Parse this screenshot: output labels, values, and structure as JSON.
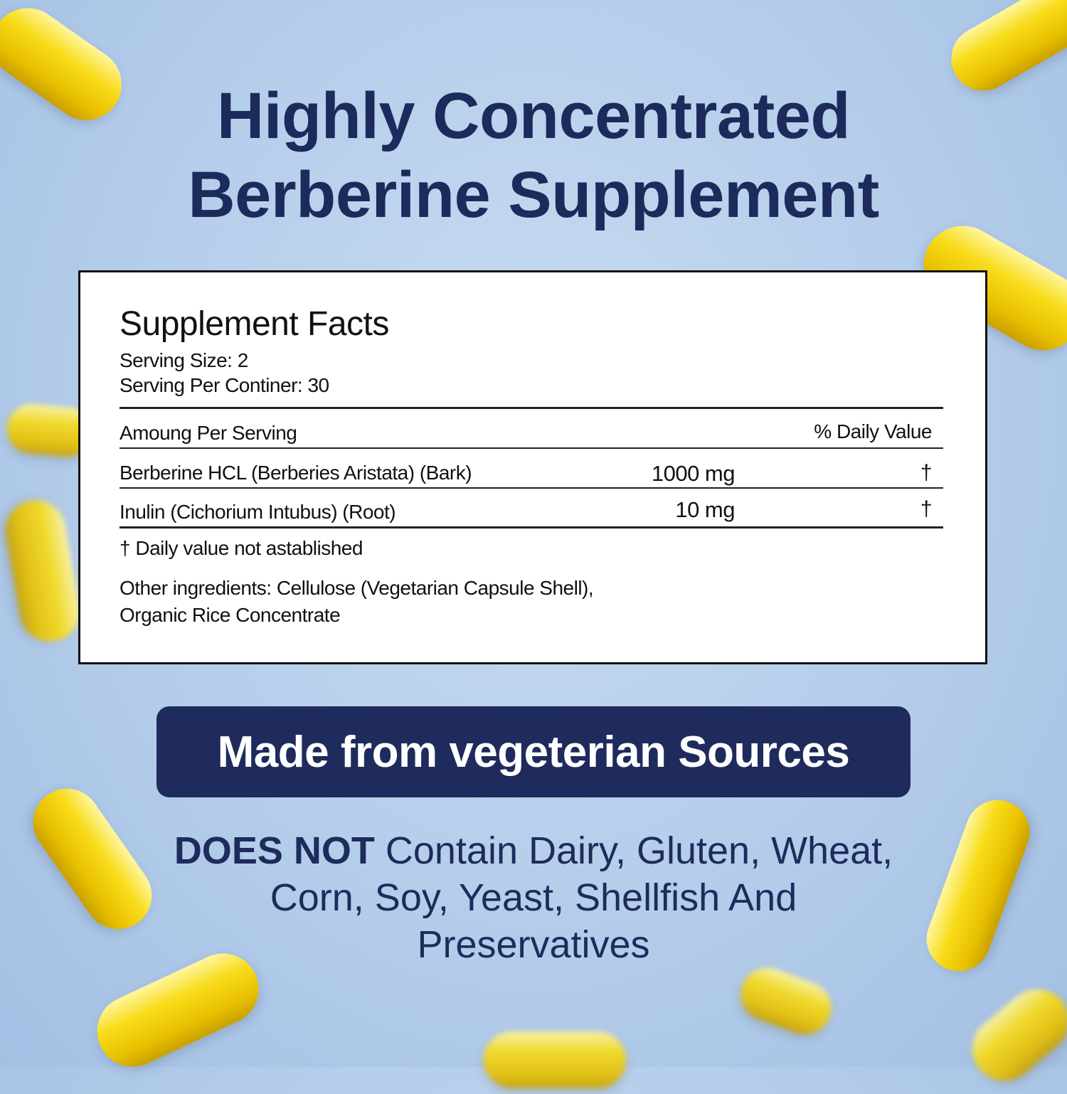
{
  "headline": {
    "line1": "Highly Concentrated",
    "line2": "Berberine Supplement"
  },
  "facts": {
    "title": "Supplement Facts",
    "serving_size": "Serving Size: 2",
    "servings_per_container": "Serving Per Continer: 30",
    "header_amount": "Amoung Per Serving",
    "header_dv": "% Daily Value",
    "rows": [
      {
        "name": "Berberine HCL (Berberies Aristata) (Bark)",
        "amount": "1000 mg",
        "dv": "†"
      },
      {
        "name": "Inulin (Cichorium Intubus) (Root)",
        "amount": "10 mg",
        "dv": "†"
      }
    ],
    "footnote": "† Daily value not astablished",
    "other_line1": "Other ingredients: Cellulose (Vegetarian Capsule Shell),",
    "other_line2": "Organic Rice Concentrate"
  },
  "banner": "Made from vegeterian Sources",
  "free_from": {
    "bold": "DOES NOT",
    "line1_rest": " Contain Dairy, Gluten, Wheat,",
    "line2": "Corn, Soy, Yeast, Shellfish And",
    "line3": "Preservatives"
  },
  "colors": {
    "navy": "#1e2b5c",
    "capsule_yellow": "#f8dc1a",
    "background": "#b4cdea"
  }
}
